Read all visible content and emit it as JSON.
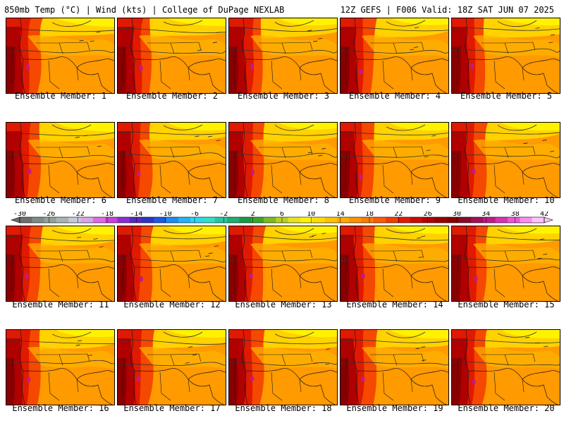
{
  "header": {
    "left": "850mb Temp (°C) | Wind (kts) | College of DuPage NEXLAB",
    "right": "12Z GEFS | F006 Valid: 18Z SAT JUN 07 2025"
  },
  "caption_prefix": "Ensemble Member: ",
  "members": [
    {
      "label": "Ensemble Member: 1"
    },
    {
      "label": "Ensemble Member: 2"
    },
    {
      "label": "Ensemble Member: 3"
    },
    {
      "label": "Ensemble Member: 4"
    },
    {
      "label": "Ensemble Member: 5"
    },
    {
      "label": "Ensemble Member: 6"
    },
    {
      "label": "Ensemble Member: 7"
    },
    {
      "label": "Ensemble Member: 8"
    },
    {
      "label": "Ensemble Member: 9"
    },
    {
      "label": "Ensemble Member: 10"
    },
    {
      "label": "Ensemble Member: 11"
    },
    {
      "label": "Ensemble Member: 12"
    },
    {
      "label": "Ensemble Member: 13"
    },
    {
      "label": "Ensemble Member: 14"
    },
    {
      "label": "Ensemble Member: 15"
    },
    {
      "label": "Ensemble Member: 16"
    },
    {
      "label": "Ensemble Member: 17"
    },
    {
      "label": "Ensemble Member: 18"
    },
    {
      "label": "Ensemble Member: 19"
    },
    {
      "label": "Ensemble Member: 20"
    }
  ],
  "colorbar": {
    "ticks": [
      "-30",
      "-26",
      "-22",
      "-18",
      "-14",
      "-10",
      "-6",
      "-2",
      "2",
      "6",
      "10",
      "14",
      "18",
      "22",
      "26",
      "30",
      "34",
      "38",
      "42"
    ],
    "colors": [
      "#6e6e6e",
      "#7f8b84",
      "#8fa49a",
      "#a9b4b6",
      "#c9c9dd",
      "#d9a6e6",
      "#e06ae6",
      "#c940d9",
      "#8a2fd1",
      "#5a28c0",
      "#3232c8",
      "#1c5ae6",
      "#1e8cf0",
      "#22b4f5",
      "#2ad7f2",
      "#2ee0c8",
      "#26c79e",
      "#1fae6f",
      "#1a9a46",
      "#3aa827",
      "#7dbb1e",
      "#b7d21a",
      "#e8e61a",
      "#fff300",
      "#ffdc00",
      "#ffc300",
      "#ffaa00",
      "#ff9200",
      "#ff7a00",
      "#ff5a00",
      "#f23c00",
      "#e31a00",
      "#cc0a00",
      "#b40000",
      "#9a0000",
      "#870000",
      "#8a0a2e",
      "#a0115a",
      "#c21a86",
      "#d933b0",
      "#ee55d6",
      "#fb8ef0",
      "#ffc2fb"
    ]
  }
}
